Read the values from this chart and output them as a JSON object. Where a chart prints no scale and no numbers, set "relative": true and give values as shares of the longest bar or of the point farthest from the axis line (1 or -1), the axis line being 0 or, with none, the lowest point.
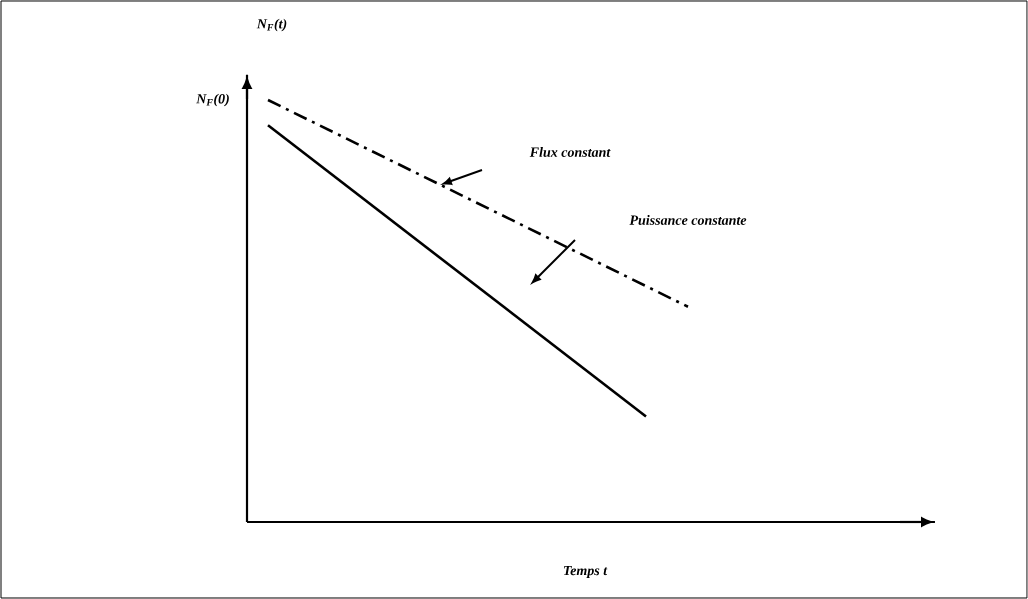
{
  "chart_data": {
    "type": "line",
    "relative": true,
    "xlabel": "Temps t",
    "ylabel": "N$_{F}$(t)",
    "categories": [
      null,
      null,
      null,
      null,
      null,
      null,
      null,
      null,
      null,
      null,
      null,
      null,
      null,
      null,
      null,
      null,
      null,
      null,
      null,
      null,
      null,
      null,
      null,
      null,
      null,
      null,
      null,
      null,
      null,
      null,
      null,
      null,
      null
    ],
    "series": [
      {
        "color": "#000000",
        "line_style": "solid",
        "values": [
          null,
          0.94,
          null,
          null,
          null,
          null,
          null,
          null,
          null,
          null,
          null,
          null,
          null,
          null,
          null,
          null,
          null,
          null,
          null,
          0.25,
          null,
          null,
          null,
          null,
          null,
          null,
          null,
          null,
          null,
          null,
          null,
          null,
          null
        ]
      },
      {
        "color": "#000000",
        "line_style": "dashed",
        "values": [
          null,
          1.0,
          null,
          null,
          null,
          null,
          null,
          null,
          null,
          null,
          null,
          null,
          null,
          null,
          null,
          null,
          null,
          null,
          null,
          null,
          null,
          0.51,
          null,
          null,
          null,
          null,
          null,
          null,
          null,
          null,
          null,
          null,
          null
        ]
      }
    ],
    "marker": "none",
    "annotations": [
      "Flux constant",
      "Puissance constante",
      "N$_{F}$(0)"
    ]
  }
}
